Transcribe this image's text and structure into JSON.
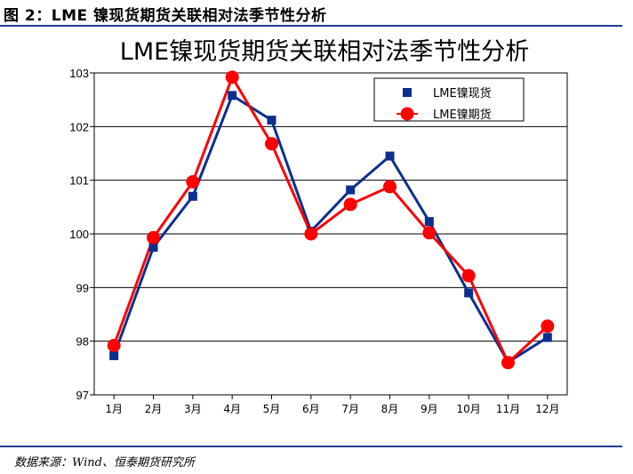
{
  "figure_caption": "图 2：LME 镍现货期货关联相对法季节性分析",
  "source_note": "数据来源：Wind、恒泰期货研究所",
  "chart_data": {
    "type": "line",
    "title": "LME镍现货期货关联相对法季节性分析",
    "categories": [
      "1月",
      "2月",
      "3月",
      "4月",
      "5月",
      "6月",
      "7月",
      "8月",
      "9月",
      "10月",
      "11月",
      "12月"
    ],
    "series": [
      {
        "name": "LME镍现货",
        "marker": "square",
        "color": "#0b2f8f",
        "values": [
          97.73,
          99.75,
          100.7,
          102.58,
          102.12,
          100.05,
          100.82,
          101.45,
          100.23,
          98.9,
          97.61,
          98.07
        ]
      },
      {
        "name": "LME镍期货",
        "marker": "circle",
        "color": "#ff0000",
        "values": [
          97.92,
          99.93,
          100.97,
          102.92,
          101.68,
          100.0,
          100.55,
          100.88,
          100.02,
          99.22,
          97.6,
          98.28
        ]
      }
    ],
    "yticks": [
      97,
      98,
      99,
      100,
      101,
      102,
      103
    ],
    "ylim": [
      97,
      103
    ],
    "grid": true,
    "legend_position": "top-right"
  }
}
